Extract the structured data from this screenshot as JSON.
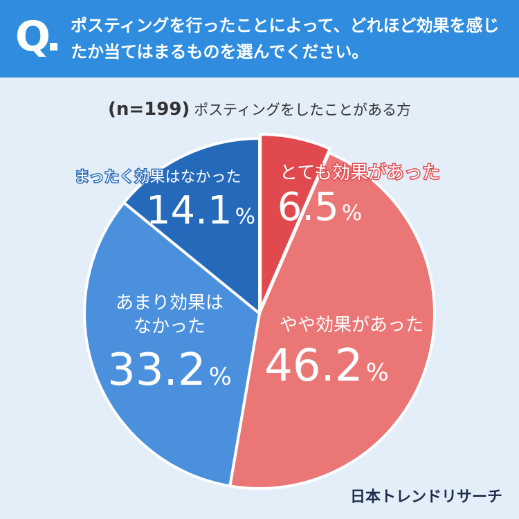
{
  "header": {
    "q_letter": "Q",
    "question": "ポスティングを行ったことによって、どれほど効果を感じたか当てはまるものを選んでください。"
  },
  "subtitle": {
    "n": "(n=199)",
    "label": "ポスティングをしたことがある方"
  },
  "colors": {
    "header_bg": "#2f8cde",
    "page_bg": "#e3eef9"
  },
  "chart_data": {
    "type": "pie",
    "start": "12 o'clock",
    "direction": "clockwise",
    "slices": [
      {
        "label": "とても効果があった",
        "value": 6.5,
        "display": "6.5",
        "color": "#e04a4f"
      },
      {
        "label": "やや効果があった",
        "value": 46.2,
        "display": "46.2",
        "color": "#ea7676"
      },
      {
        "label": "あまり効果は なかった",
        "value": 33.2,
        "display": "33.2",
        "color": "#4a90dc"
      },
      {
        "label": "まったく効果はなかった",
        "value": 14.1,
        "display": "14.1",
        "color": "#2569ba"
      }
    ],
    "unit": "%"
  },
  "footer": {
    "logo": "日本トレンドリサーチ"
  }
}
